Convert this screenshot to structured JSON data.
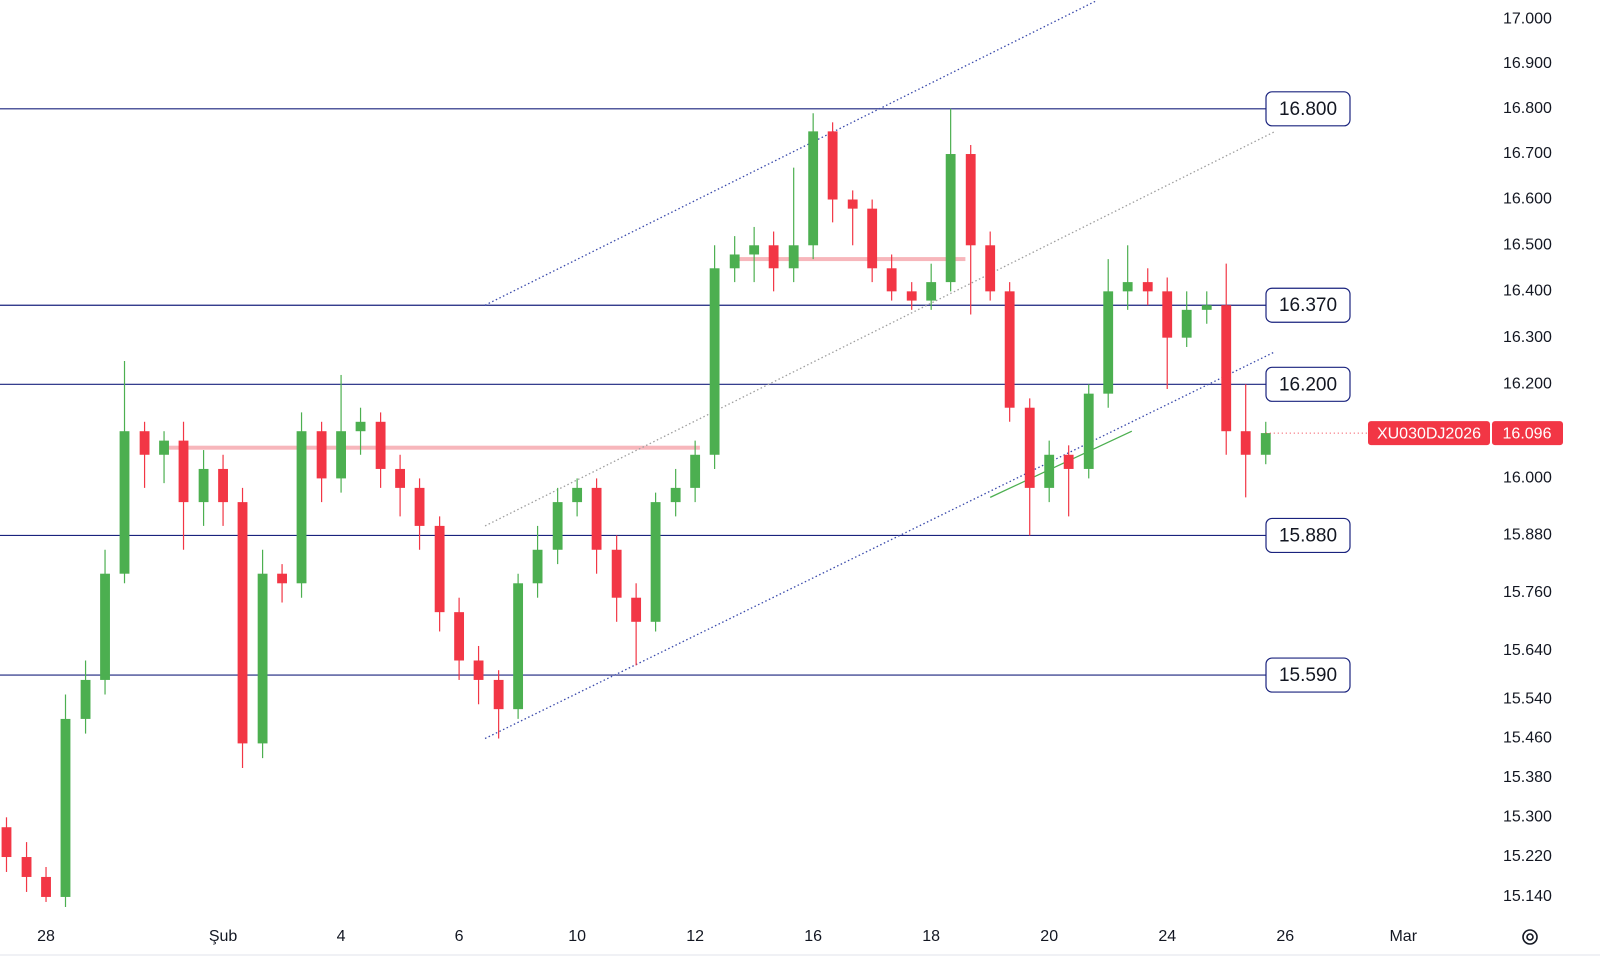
{
  "chart_data": {
    "type": "candlestick",
    "symbol": "XU030DJ2026",
    "last": 16.096,
    "log_scale": true,
    "grid": false,
    "up_color": "#4caf50",
    "down_color": "#f23645",
    "ylim": [
      15.094,
      17.043
    ],
    "xlim": [
      -0.78,
      24.47
    ],
    "yticks": [
      {
        "value": 17.0,
        "label": "17.000"
      },
      {
        "value": 16.9,
        "label": "16.900"
      },
      {
        "value": 16.8,
        "label": "16.800"
      },
      {
        "value": 16.7,
        "label": "16.700"
      },
      {
        "value": 16.6,
        "label": "16.600"
      },
      {
        "value": 16.5,
        "label": "16.500"
      },
      {
        "value": 16.4,
        "label": "16.400"
      },
      {
        "value": 16.3,
        "label": "16.300"
      },
      {
        "value": 16.2,
        "label": "16.200"
      },
      {
        "value": 16.0,
        "label": "16.000"
      },
      {
        "value": 15.88,
        "label": "15.880"
      },
      {
        "value": 15.76,
        "label": "15.760"
      },
      {
        "value": 15.64,
        "label": "15.640"
      },
      {
        "value": 15.54,
        "label": "15.540"
      },
      {
        "value": 15.46,
        "label": "15.460"
      },
      {
        "value": 15.38,
        "label": "15.380"
      },
      {
        "value": 15.3,
        "label": "15.300"
      },
      {
        "value": 15.22,
        "label": "15.220"
      },
      {
        "value": 15.14,
        "label": "15.140"
      }
    ],
    "xticks": [
      {
        "value": 0,
        "label": "28"
      },
      {
        "value": 3,
        "label": "Şub"
      },
      {
        "value": 5,
        "label": "4"
      },
      {
        "value": 7,
        "label": "6"
      },
      {
        "value": 9,
        "label": "10"
      },
      {
        "value": 11,
        "label": "12"
      },
      {
        "value": 13,
        "label": "16"
      },
      {
        "value": 15,
        "label": "18"
      },
      {
        "value": 17,
        "label": "20"
      },
      {
        "value": 19,
        "label": "24"
      },
      {
        "value": 21,
        "label": "26"
      },
      {
        "value": 23,
        "label": "Mar"
      }
    ],
    "levels": [
      {
        "value": 16.8,
        "label": "16.800"
      },
      {
        "value": 16.37,
        "label": "16.370"
      },
      {
        "value": 16.2,
        "label": "16.200"
      },
      {
        "value": 15.88,
        "label": "15.880"
      },
      {
        "value": 15.59,
        "label": "15.590"
      }
    ],
    "level_color": "#1a237e",
    "zones": [
      {
        "value": 16.065,
        "x": [
          1.93,
          11.08
        ]
      },
      {
        "value": 16.47,
        "x": [
          11.59,
          15.58
        ]
      }
    ],
    "zone_color": "#f7b6bb",
    "trendlines": [
      {
        "x": [
          7.44,
          17.78
        ],
        "y": [
          16.37,
          17.04
        ],
        "color": "#3949ab",
        "dotted": true
      },
      {
        "x": [
          7.44,
          20.83
        ],
        "y": [
          15.9,
          16.75
        ],
        "color": "#9e9e9e",
        "dotted": true
      },
      {
        "x": [
          7.44,
          20.83
        ],
        "y": [
          15.46,
          16.27
        ],
        "color": "#3949ab",
        "dotted": true
      },
      {
        "x": [
          16.0,
          18.4
        ],
        "y": [
          15.96,
          16.1
        ],
        "color": "#4caf50",
        "dotted": false
      }
    ],
    "x": [
      -0.67,
      -0.33,
      0,
      0.33,
      0.67,
      1,
      1.33,
      1.67,
      2,
      2.33,
      2.67,
      3,
      3.33,
      3.67,
      4,
      4.33,
      4.67,
      5,
      5.33,
      5.67,
      6,
      6.33,
      6.67,
      7,
      7.33,
      7.67,
      8,
      8.33,
      8.67,
      9,
      9.33,
      9.67,
      10,
      10.33,
      10.67,
      11,
      11.33,
      11.67,
      12,
      12.33,
      12.67,
      13,
      13.33,
      13.67,
      14,
      14.33,
      14.67,
      15,
      15.33,
      15.67,
      16,
      16.33,
      16.67,
      17,
      17.33,
      17.67,
      18,
      18.33,
      18.67,
      19,
      19.33,
      19.67,
      20,
      20.33,
      20.67
    ],
    "open": [
      15.28,
      15.22,
      15.18,
      15.14,
      15.5,
      15.58,
      15.8,
      16.1,
      16.05,
      16.08,
      15.95,
      16.02,
      15.95,
      15.45,
      15.8,
      15.78,
      16.1,
      16.0,
      16.1,
      16.12,
      16.02,
      15.98,
      15.9,
      15.72,
      15.62,
      15.58,
      15.52,
      15.78,
      15.85,
      15.95,
      15.98,
      15.85,
      15.75,
      15.7,
      15.95,
      15.98,
      16.05,
      16.45,
      16.48,
      16.5,
      16.45,
      16.5,
      16.75,
      16.6,
      16.58,
      16.45,
      16.4,
      16.38,
      16.42,
      16.7,
      16.5,
      16.4,
      16.15,
      15.98,
      16.05,
      16.02,
      16.18,
      16.4,
      16.42,
      16.4,
      16.3,
      16.36,
      16.37,
      16.1,
      16.05
    ],
    "high": [
      15.3,
      15.25,
      15.2,
      15.55,
      15.62,
      15.85,
      16.25,
      16.12,
      16.1,
      16.12,
      16.06,
      16.05,
      15.98,
      15.85,
      15.82,
      16.14,
      16.12,
      16.22,
      16.15,
      16.14,
      16.05,
      16.0,
      15.92,
      15.75,
      15.65,
      15.6,
      15.8,
      15.9,
      15.98,
      16.0,
      16.0,
      15.88,
      15.78,
      15.97,
      16.02,
      16.08,
      16.5,
      16.52,
      16.54,
      16.53,
      16.67,
      16.79,
      16.77,
      16.62,
      16.6,
      16.48,
      16.42,
      16.46,
      16.8,
      16.72,
      16.53,
      16.42,
      16.17,
      16.08,
      16.07,
      16.2,
      16.47,
      16.5,
      16.45,
      16.43,
      16.4,
      16.4,
      16.46,
      16.2,
      16.12
    ],
    "low": [
      15.19,
      15.15,
      15.13,
      15.12,
      15.47,
      15.55,
      15.78,
      15.98,
      15.99,
      15.85,
      15.9,
      15.9,
      15.4,
      15.42,
      15.74,
      15.75,
      15.95,
      15.97,
      16.05,
      15.98,
      15.92,
      15.85,
      15.68,
      15.58,
      15.53,
      15.46,
      15.5,
      15.75,
      15.82,
      15.92,
      15.8,
      15.7,
      15.61,
      15.68,
      15.92,
      15.95,
      16.02,
      16.42,
      16.42,
      16.4,
      16.42,
      16.47,
      16.55,
      16.5,
      16.42,
      16.38,
      16.36,
      16.36,
      16.4,
      16.35,
      16.38,
      16.12,
      15.88,
      15.95,
      15.92,
      16.0,
      16.15,
      16.36,
      16.37,
      16.19,
      16.28,
      16.33,
      16.05,
      15.96,
      16.03
    ],
    "close": [
      15.22,
      15.18,
      15.14,
      15.5,
      15.58,
      15.8,
      16.1,
      16.05,
      16.08,
      15.95,
      16.02,
      15.95,
      15.45,
      15.8,
      15.78,
      16.1,
      16.0,
      16.1,
      16.12,
      16.02,
      15.98,
      15.9,
      15.72,
      15.62,
      15.58,
      15.52,
      15.78,
      15.85,
      15.95,
      15.98,
      15.85,
      15.75,
      15.7,
      15.95,
      15.98,
      16.05,
      16.45,
      16.48,
      16.5,
      16.45,
      16.5,
      16.75,
      16.6,
      16.58,
      16.45,
      16.4,
      16.38,
      16.42,
      16.7,
      16.5,
      16.4,
      16.15,
      15.98,
      16.05,
      16.02,
      16.18,
      16.4,
      16.42,
      16.4,
      16.3,
      16.36,
      16.37,
      16.1,
      16.05,
      16.096
    ]
  }
}
